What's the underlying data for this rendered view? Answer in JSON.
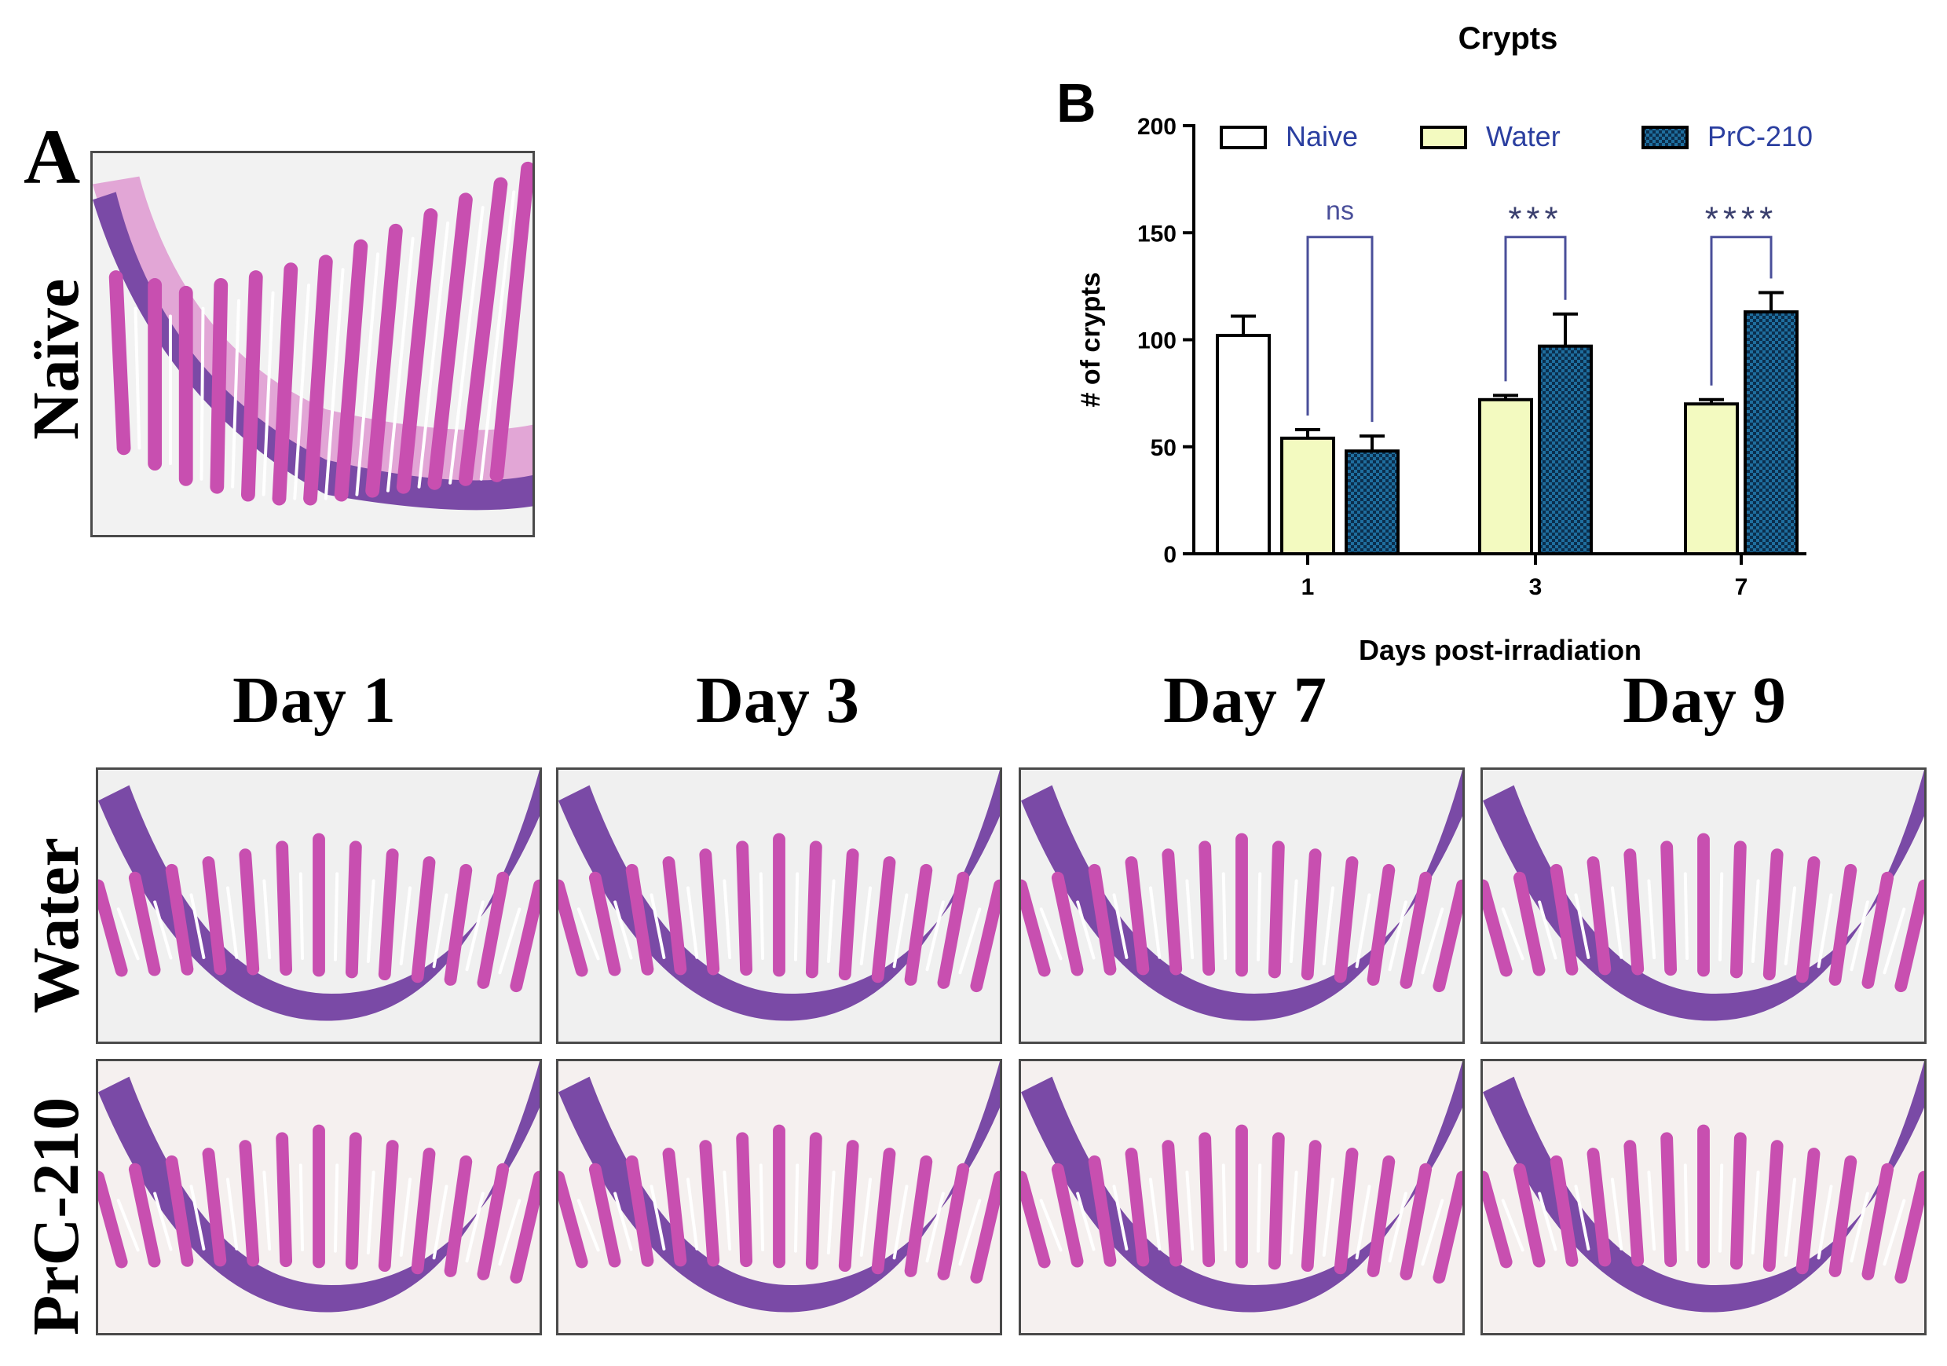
{
  "panel_a": {
    "letter": "A",
    "naive_label": "Naïve",
    "columns": [
      "Day 1",
      "Day 3",
      "Day 7",
      "Day 9"
    ],
    "rows": [
      "Water",
      "PrC-210"
    ]
  },
  "panel_b": {
    "letter": "B"
  },
  "chart_data": {
    "type": "bar",
    "title": "Crypts",
    "xlabel": "Days post-irradiation",
    "ylabel": "# of crypts",
    "ylim": [
      0,
      200
    ],
    "yticks": [
      0,
      50,
      100,
      150,
      200
    ],
    "categories": [
      "1",
      "3",
      "7"
    ],
    "series": [
      {
        "name": "Naive",
        "fill": "#ffffff",
        "pattern": "none",
        "values": [
          102,
          null,
          null
        ],
        "errors": [
          9,
          null,
          null
        ]
      },
      {
        "name": "Water",
        "fill": "#f3fac0",
        "pattern": "none",
        "values": [
          54,
          72,
          70
        ],
        "errors": [
          4,
          2,
          2
        ]
      },
      {
        "name": "PrC-210",
        "fill": "#1f6e9e",
        "pattern": "checker",
        "values": [
          48,
          97,
          113
        ],
        "errors": [
          7,
          15,
          9
        ]
      }
    ],
    "significance": [
      {
        "category": "1",
        "label": "ns"
      },
      {
        "category": "3",
        "label": "***"
      },
      {
        "category": "7",
        "label": "****"
      }
    ],
    "legend_position": "top",
    "grid": false,
    "colors": {
      "axis": "#000000",
      "legend_text": "#2b3fa0",
      "bracket": "#4a4f9a",
      "star": "#3a3f6e"
    }
  }
}
